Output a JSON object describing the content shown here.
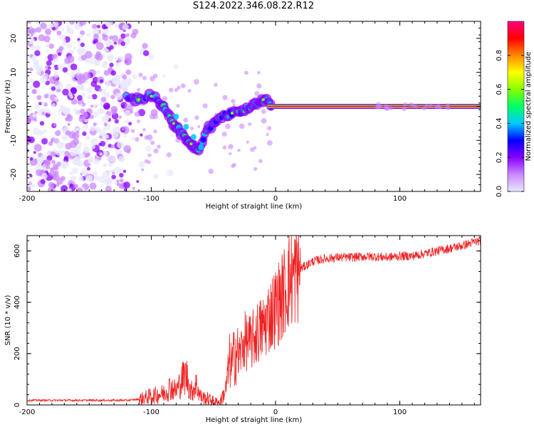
{
  "title": "S124.2022.346.08.22.R12",
  "chart_data": [
    {
      "type": "heatmap",
      "xlabel": "Height of straight line (km)",
      "ylabel": "Frequency (Hz)",
      "xlim": [
        -200,
        165
      ],
      "ylim": [
        -25,
        25
      ],
      "x_ticks": [
        -200,
        -100,
        0,
        100
      ],
      "y_ticks": [
        -20,
        -10,
        0,
        10,
        20
      ],
      "colorbar": {
        "label": "Normalized spectral amplitude",
        "range": [
          0,
          1
        ],
        "ticks": [
          "0.0",
          "0.2",
          "0.4",
          "0.6",
          "0.8"
        ],
        "colormap": [
          "#e8e8ff",
          "#cc88ff",
          "#8800ff",
          "#0000ff",
          "#00ccff",
          "#00ff66",
          "#88ff00",
          "#ffff00",
          "#ff8800",
          "#ff0000",
          "#ff0080"
        ]
      },
      "carrier_line": {
        "frequency": 0,
        "x_start": -7,
        "x_end": 165,
        "amplitude": 0.95
      },
      "signal_trace": [
        {
          "x": -120,
          "y": 3
        },
        {
          "x": -110,
          "y": 2
        },
        {
          "x": -100,
          "y": 3
        },
        {
          "x": -90,
          "y": 0
        },
        {
          "x": -82,
          "y": -5
        },
        {
          "x": -75,
          "y": -8
        },
        {
          "x": -68,
          "y": -11
        },
        {
          "x": -62,
          "y": -13
        },
        {
          "x": -55,
          "y": -7
        },
        {
          "x": -45,
          "y": -3
        },
        {
          "x": -35,
          "y": -2
        },
        {
          "x": -25,
          "y": -1
        },
        {
          "x": -15,
          "y": 1
        },
        {
          "x": -8,
          "y": 2
        },
        {
          "x": -3,
          "y": 0
        }
      ]
    },
    {
      "type": "line",
      "xlabel": "Height of straight line (km)",
      "ylabel": "SNR (10 * v/v)",
      "xlim": [
        -200,
        165
      ],
      "ylim": [
        0,
        660
      ],
      "x_ticks": [
        -200,
        -100,
        0,
        100
      ],
      "y_ticks": [
        0,
        200,
        400,
        600
      ],
      "series": [
        {
          "color": "#ee2222",
          "x": [
            -200,
            -180,
            -160,
            -140,
            -120,
            -110,
            -100,
            -90,
            -85,
            -80,
            -75,
            -72,
            -68,
            -64,
            -60,
            -55,
            -50,
            -45,
            -40,
            -37,
            -35,
            -32,
            -30,
            -25,
            -20,
            -15,
            -10,
            -5,
            0,
            5,
            10,
            20,
            30,
            40,
            50,
            60,
            70,
            80,
            90,
            100,
            110,
            120,
            130,
            140,
            150,
            160,
            165
          ],
          "y": [
            18,
            18,
            18,
            18,
            18,
            22,
            35,
            45,
            70,
            55,
            100,
            120,
            50,
            80,
            30,
            25,
            15,
            8,
            60,
            170,
            150,
            220,
            180,
            250,
            240,
            280,
            300,
            350,
            380,
            420,
            480,
            530,
            560,
            570,
            575,
            575,
            578,
            578,
            575,
            580,
            580,
            590,
            600,
            610,
            620,
            635,
            640
          ]
        }
      ]
    }
  ]
}
